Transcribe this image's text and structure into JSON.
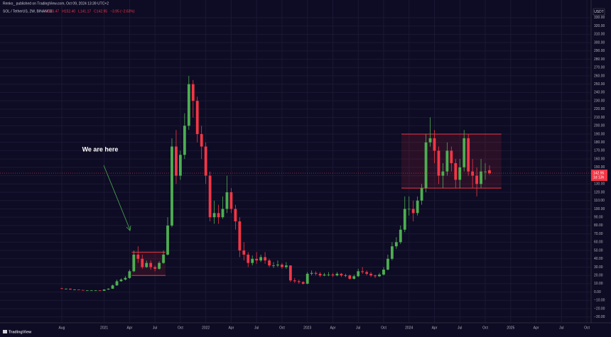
{
  "chart_data": {
    "type": "candlestick",
    "published": "Renko_ published on TradingView.com, Oct 09, 2024 13:39 UTC+2",
    "symbol": "SOL / TetherUS, 2W, BINANCE",
    "ohlc_header": [
      "O146.47",
      "H152.40",
      "L141.17",
      "C142.95",
      "−3.95 (−2.63%)"
    ],
    "currency": "USDT",
    "annotation": "We are here",
    "countdown": "1d 13h",
    "last_price_label": "142.95",
    "logo": "TradingView",
    "up_color": "#4caf50",
    "down_color": "#f23645",
    "grid": true,
    "open": [
      4.5,
      4,
      4,
      3,
      3,
      2.5,
      2,
      2,
      2,
      2,
      1.5,
      3,
      4,
      8,
      13,
      15,
      17,
      25,
      45,
      40,
      30,
      35,
      30,
      28,
      35,
      45,
      80,
      175,
      140,
      165,
      200,
      250,
      230,
      190,
      175,
      140,
      90,
      95,
      90,
      100,
      120,
      100,
      85,
      50,
      45,
      35,
      40,
      38,
      42,
      38,
      32,
      32,
      33,
      30,
      32,
      14,
      13,
      12,
      10,
      22,
      23,
      22,
      20,
      21,
      21,
      20,
      22,
      20,
      20,
      16,
      19,
      25,
      24,
      22,
      20,
      19,
      21,
      27,
      40,
      55,
      60,
      75,
      100,
      100,
      95,
      110,
      125,
      180,
      185,
      170,
      140,
      145,
      170,
      155,
      135,
      150,
      185,
      145,
      140,
      130,
      145,
      146.47
    ],
    "high": [
      5,
      4.5,
      4.3,
      3.4,
      3.2,
      2.7,
      2.2,
      2.3,
      2.2,
      2.2,
      3.3,
      4.5,
      9,
      15,
      16.5,
      19,
      27,
      50,
      55,
      45,
      38,
      38,
      32,
      37,
      50,
      90,
      185,
      195,
      170,
      215,
      260,
      255,
      235,
      200,
      180,
      145,
      110,
      105,
      115,
      140,
      125,
      105,
      90,
      60,
      48,
      44,
      48,
      45,
      48,
      40,
      36,
      38,
      35,
      36,
      32,
      17,
      15,
      13,
      24,
      26,
      25,
      24,
      23,
      24,
      23,
      24,
      23,
      22,
      21,
      21,
      28,
      30,
      26,
      24,
      21,
      23,
      30,
      45,
      60,
      66,
      80,
      115,
      115,
      110,
      115,
      130,
      190,
      210,
      195,
      175,
      155,
      180,
      175,
      160,
      160,
      195,
      190,
      160,
      150,
      160,
      155,
      152.4
    ],
    "low": [
      3.8,
      3.6,
      2.8,
      2.7,
      2.3,
      1.8,
      1.8,
      1.8,
      1.8,
      1.3,
      1.4,
      2.8,
      3.8,
      7.5,
      12.5,
      14,
      16,
      24,
      35,
      28,
      29,
      27,
      25,
      27,
      34,
      44,
      78,
      130,
      135,
      160,
      195,
      210,
      180,
      160,
      130,
      85,
      82,
      82,
      88,
      95,
      95,
      75,
      42,
      38,
      30,
      32,
      34,
      36,
      34,
      30,
      29,
      30,
      28,
      28,
      12,
      11,
      10,
      9,
      9.5,
      20,
      20,
      18,
      19,
      19,
      18,
      19,
      18,
      18,
      15,
      15,
      18,
      22,
      20,
      18,
      17,
      18,
      20,
      26,
      38,
      52,
      58,
      72,
      92,
      85,
      92,
      105,
      120,
      175,
      155,
      130,
      125,
      140,
      145,
      125,
      125,
      145,
      140,
      125,
      115,
      125,
      135,
      141.17
    ],
    "close": [
      4,
      4,
      3,
      3,
      2.5,
      2,
      2,
      2,
      2,
      1.5,
      3,
      4,
      8,
      13,
      15,
      17,
      25,
      45,
      40,
      30,
      35,
      30,
      28,
      35,
      45,
      80,
      175,
      140,
      165,
      200,
      250,
      230,
      190,
      175,
      140,
      90,
      95,
      90,
      100,
      120,
      100,
      85,
      50,
      45,
      35,
      40,
      38,
      42,
      38,
      32,
      32,
      33,
      30,
      32,
      14,
      13,
      12,
      10,
      22,
      23,
      22,
      20,
      21,
      21,
      20,
      22,
      20,
      20,
      16,
      19,
      25,
      24,
      22,
      20,
      19,
      21,
      27,
      40,
      55,
      60,
      75,
      100,
      100,
      95,
      110,
      125,
      180,
      185,
      170,
      140,
      145,
      170,
      155,
      135,
      150,
      185,
      145,
      140,
      130,
      145,
      145,
      142.95
    ],
    "boxes": [
      {
        "x": [
          16.5,
          24.5
        ],
        "y": [
          20,
          48
        ],
        "color": "#f23645"
      },
      {
        "x": [
          80.2,
          103.8
        ],
        "y": [
          125,
          190
        ],
        "color": "#f23645"
      }
    ],
    "xlim": [
      -14.6,
      125
    ],
    "xticks": [
      {
        "value": 0,
        "label": "Aug"
      },
      {
        "value": 10,
        "label": "2021"
      },
      {
        "value": 16,
        "label": "Apr"
      },
      {
        "value": 22,
        "label": "Jul"
      },
      {
        "value": 28,
        "label": "Oct"
      },
      {
        "value": 34,
        "label": "2022"
      },
      {
        "value": 40,
        "label": "Apr"
      },
      {
        "value": 46,
        "label": "Jul"
      },
      {
        "value": 52,
        "label": "Oct"
      },
      {
        "value": 58,
        "label": "2023"
      },
      {
        "value": 64,
        "label": "Apr"
      },
      {
        "value": 70,
        "label": "Jul"
      },
      {
        "value": 76,
        "label": "Oct"
      },
      {
        "value": 82,
        "label": "2024"
      },
      {
        "value": 88,
        "label": "Apr"
      },
      {
        "value": 94,
        "label": "Jul"
      },
      {
        "value": 100,
        "label": "Oct"
      },
      {
        "value": 106,
        "label": "2025"
      },
      {
        "value": 112,
        "label": "Apr"
      },
      {
        "value": 118,
        "label": "Jul"
      },
      {
        "value": 124,
        "label": "Oct"
      }
    ],
    "ylim": [
      -37,
      341
    ],
    "yticks": [
      {
        "value": 330,
        "label": "330.00"
      },
      {
        "value": 320,
        "label": "320.00"
      },
      {
        "value": 310,
        "label": "310.00"
      },
      {
        "value": 300,
        "label": "300.00"
      },
      {
        "value": 290,
        "label": "290.00"
      },
      {
        "value": 280,
        "label": "280.00"
      },
      {
        "value": 270,
        "label": "270.00"
      },
      {
        "value": 260,
        "label": "260.00"
      },
      {
        "value": 250,
        "label": "250.00"
      },
      {
        "value": 240,
        "label": "240.00"
      },
      {
        "value": 230,
        "label": "230.00"
      },
      {
        "value": 220,
        "label": "220.00"
      },
      {
        "value": 210,
        "label": "210.00"
      },
      {
        "value": 200,
        "label": "200.00"
      },
      {
        "value": 190,
        "label": "190.00"
      },
      {
        "value": 180,
        "label": "180.00"
      },
      {
        "value": 170,
        "label": "170.00"
      },
      {
        "value": 160,
        "label": "160.00"
      },
      {
        "value": 150,
        "label": "150.00"
      },
      {
        "value": 140,
        "label": "140.00"
      },
      {
        "value": 130,
        "label": "130.00"
      },
      {
        "value": 120,
        "label": "120.00"
      },
      {
        "value": 110,
        "label": "110.00"
      },
      {
        "value": 100,
        "label": "100.00"
      },
      {
        "value": 90,
        "label": "90.00"
      },
      {
        "value": 80,
        "label": "80.00"
      },
      {
        "value": 70,
        "label": "70.00"
      },
      {
        "value": 60,
        "label": "60.00"
      },
      {
        "value": 50,
        "label": "50.00"
      },
      {
        "value": 40,
        "label": "40.00"
      },
      {
        "value": 30,
        "label": "30.00"
      },
      {
        "value": 20,
        "label": "20.00"
      },
      {
        "value": 10,
        "label": "10.00"
      },
      {
        "value": 0,
        "label": "0.00"
      },
      {
        "value": -10,
        "label": "−10.00"
      },
      {
        "value": -20,
        "label": "−20.00"
      },
      {
        "value": -30,
        "label": "−30.00"
      }
    ]
  }
}
